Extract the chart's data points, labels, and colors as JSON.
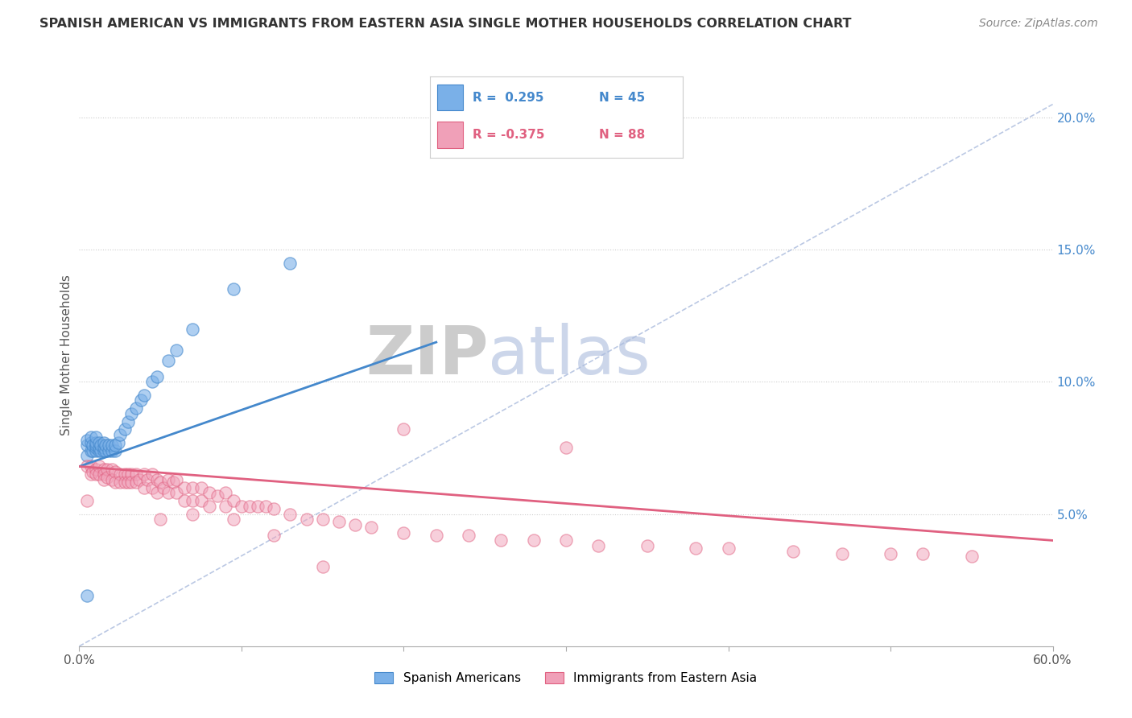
{
  "title": "SPANISH AMERICAN VS IMMIGRANTS FROM EASTERN ASIA SINGLE MOTHER HOUSEHOLDS CORRELATION CHART",
  "source": "Source: ZipAtlas.com",
  "ylabel": "Single Mother Households",
  "watermark_part1": "ZIP",
  "watermark_part2": "atlas",
  "legend": {
    "blue_R": "R =  0.295",
    "blue_N": "N = 45",
    "pink_R": "R = -0.375",
    "pink_N": "N = 88"
  },
  "yticks": [
    "5.0%",
    "10.0%",
    "15.0%",
    "20.0%"
  ],
  "ytick_vals": [
    0.05,
    0.1,
    0.15,
    0.2
  ],
  "xlim": [
    0.0,
    0.6
  ],
  "ylim": [
    0.0,
    0.22
  ],
  "blue_color": "#7ab0e8",
  "blue_color_dark": "#4488cc",
  "pink_color": "#f0a0b8",
  "pink_color_dark": "#e06080",
  "blue_scatter": {
    "x": [
      0.005,
      0.005,
      0.005,
      0.007,
      0.007,
      0.007,
      0.008,
      0.008,
      0.01,
      0.01,
      0.01,
      0.01,
      0.01,
      0.012,
      0.012,
      0.012,
      0.013,
      0.013,
      0.015,
      0.015,
      0.015,
      0.016,
      0.016,
      0.018,
      0.018,
      0.02,
      0.02,
      0.022,
      0.022,
      0.024,
      0.025,
      0.028,
      0.03,
      0.032,
      0.035,
      0.038,
      0.04,
      0.045,
      0.048,
      0.055,
      0.06,
      0.07,
      0.095,
      0.13,
      0.005
    ],
    "y": [
      0.072,
      0.076,
      0.078,
      0.074,
      0.077,
      0.079,
      0.074,
      0.076,
      0.074,
      0.075,
      0.076,
      0.077,
      0.079,
      0.074,
      0.075,
      0.077,
      0.074,
      0.076,
      0.074,
      0.075,
      0.077,
      0.074,
      0.076,
      0.074,
      0.076,
      0.074,
      0.076,
      0.074,
      0.076,
      0.077,
      0.08,
      0.082,
      0.085,
      0.088,
      0.09,
      0.093,
      0.095,
      0.1,
      0.102,
      0.108,
      0.112,
      0.12,
      0.135,
      0.145,
      0.019
    ]
  },
  "pink_scatter": {
    "x": [
      0.005,
      0.005,
      0.007,
      0.007,
      0.008,
      0.01,
      0.01,
      0.012,
      0.012,
      0.015,
      0.015,
      0.015,
      0.017,
      0.017,
      0.02,
      0.02,
      0.022,
      0.022,
      0.025,
      0.025,
      0.028,
      0.028,
      0.03,
      0.03,
      0.032,
      0.032,
      0.035,
      0.035,
      0.037,
      0.04,
      0.04,
      0.042,
      0.045,
      0.045,
      0.048,
      0.048,
      0.05,
      0.052,
      0.055,
      0.055,
      0.058,
      0.06,
      0.06,
      0.065,
      0.065,
      0.07,
      0.07,
      0.075,
      0.075,
      0.08,
      0.08,
      0.085,
      0.09,
      0.09,
      0.095,
      0.1,
      0.105,
      0.11,
      0.115,
      0.12,
      0.13,
      0.14,
      0.15,
      0.16,
      0.17,
      0.18,
      0.2,
      0.22,
      0.24,
      0.26,
      0.28,
      0.3,
      0.32,
      0.35,
      0.38,
      0.4,
      0.44,
      0.47,
      0.5,
      0.52,
      0.55,
      0.3,
      0.2,
      0.15,
      0.12,
      0.095,
      0.07,
      0.05
    ],
    "y": [
      0.068,
      0.055,
      0.068,
      0.065,
      0.066,
      0.067,
      0.065,
      0.068,
      0.065,
      0.067,
      0.065,
      0.063,
      0.067,
      0.064,
      0.067,
      0.063,
      0.066,
      0.062,
      0.065,
      0.062,
      0.065,
      0.062,
      0.065,
      0.062,
      0.065,
      0.062,
      0.065,
      0.062,
      0.063,
      0.065,
      0.06,
      0.063,
      0.065,
      0.06,
      0.063,
      0.058,
      0.062,
      0.06,
      0.063,
      0.058,
      0.062,
      0.058,
      0.063,
      0.06,
      0.055,
      0.06,
      0.055,
      0.06,
      0.055,
      0.058,
      0.053,
      0.057,
      0.058,
      0.053,
      0.055,
      0.053,
      0.053,
      0.053,
      0.053,
      0.052,
      0.05,
      0.048,
      0.048,
      0.047,
      0.046,
      0.045,
      0.043,
      0.042,
      0.042,
      0.04,
      0.04,
      0.04,
      0.038,
      0.038,
      0.037,
      0.037,
      0.036,
      0.035,
      0.035,
      0.035,
      0.034,
      0.075,
      0.082,
      0.03,
      0.042,
      0.048,
      0.05,
      0.048
    ]
  },
  "blue_trend": {
    "x": [
      0.0,
      0.22
    ],
    "y": [
      0.068,
      0.115
    ]
  },
  "pink_trend": {
    "x": [
      0.0,
      0.6
    ],
    "y": [
      0.068,
      0.04
    ]
  },
  "grey_dashed": {
    "x": [
      0.0,
      0.6
    ],
    "y": [
      0.0,
      0.205
    ]
  }
}
